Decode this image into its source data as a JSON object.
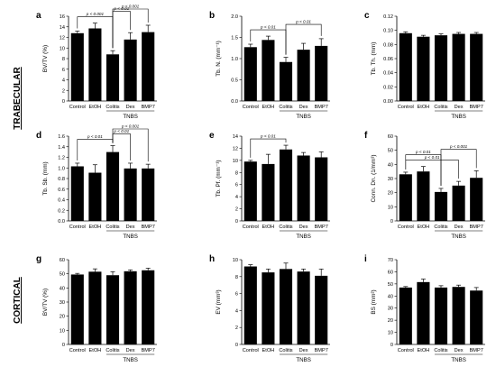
{
  "sections": [
    "TRABECULAR",
    "CORTICAL"
  ],
  "group_label": "TNBS",
  "chart_data": [
    {
      "type": "bar",
      "panel": "a",
      "ylabel": "BV/TV (%)",
      "ylim": [
        0,
        16
      ],
      "yticks": [
        0,
        2,
        4,
        6,
        8,
        10,
        12,
        14,
        16
      ],
      "categories": [
        "Control",
        "EtOH",
        "Colitis",
        "Dex",
        "BMP7"
      ],
      "values": [
        12.8,
        13.7,
        8.8,
        11.6,
        13.0
      ],
      "errors": [
        0.4,
        1.0,
        0.7,
        1.3,
        1.3
      ],
      "comparisons": [
        {
          "a": 0,
          "b": 2,
          "label": "p < 0.001"
        },
        {
          "a": 2,
          "b": 3,
          "label": "p < 0.01"
        },
        {
          "a": 2,
          "b": 4,
          "label": "p < 0.001"
        }
      ]
    },
    {
      "type": "bar",
      "panel": "b",
      "ylabel": "Tb. N. (mm⁻¹)",
      "ylim": [
        0,
        2.0
      ],
      "yticks": [
        0,
        0.5,
        1.0,
        1.5,
        2.0
      ],
      "categories": [
        "Control",
        "EtOH",
        "Colitis",
        "Dex",
        "BMP7"
      ],
      "values": [
        1.27,
        1.44,
        0.92,
        1.21,
        1.3
      ],
      "errors": [
        0.07,
        0.09,
        0.11,
        0.15,
        0.17
      ],
      "comparisons": [
        {
          "a": 0,
          "b": 2,
          "label": "p < 0.01"
        },
        {
          "a": 2,
          "b": 4,
          "label": "p < 0.01"
        }
      ]
    },
    {
      "type": "bar",
      "panel": "c",
      "ylabel": "Tb. Th. (mm)",
      "ylim": [
        0,
        0.12
      ],
      "yticks": [
        0,
        0.02,
        0.04,
        0.06,
        0.08,
        0.1,
        0.12
      ],
      "categories": [
        "Control",
        "EtOH",
        "Colitis",
        "Dex",
        "BMP7"
      ],
      "values": [
        0.096,
        0.091,
        0.093,
        0.095,
        0.095
      ],
      "errors": [
        0.002,
        0.002,
        0.002,
        0.002,
        0.002
      ],
      "comparisons": []
    },
    {
      "type": "bar",
      "panel": "d",
      "ylabel": "Tb. Sb. (mm)",
      "ylim": [
        0,
        1.6
      ],
      "yticks": [
        0,
        0.2,
        0.4,
        0.6,
        0.8,
        1.0,
        1.2,
        1.4,
        1.6
      ],
      "categories": [
        "Control",
        "EtOH",
        "Colitis",
        "Dex",
        "BMP7"
      ],
      "values": [
        1.03,
        0.91,
        1.3,
        0.99,
        0.99
      ],
      "errors": [
        0.06,
        0.15,
        0.12,
        0.1,
        0.08
      ],
      "comparisons": [
        {
          "a": 0,
          "b": 2,
          "label": "p < 0.01"
        },
        {
          "a": 2,
          "b": 3,
          "label": "p < 0.01"
        },
        {
          "a": 2,
          "b": 4,
          "label": "p < 0.001"
        }
      ]
    },
    {
      "type": "bar",
      "panel": "e",
      "ylabel": "Tb. Pf. (mm⁻¹)",
      "ylim": [
        0,
        14
      ],
      "yticks": [
        0,
        2,
        4,
        6,
        8,
        10,
        12,
        14
      ],
      "categories": [
        "Control",
        "EtOH",
        "Colitis",
        "Dex",
        "BMP7"
      ],
      "values": [
        9.8,
        9.4,
        11.8,
        10.8,
        10.5
      ],
      "errors": [
        0.2,
        1.6,
        0.7,
        0.5,
        0.9
      ],
      "comparisons": [
        {
          "a": 0,
          "b": 2,
          "label": "p < 0.01"
        }
      ]
    },
    {
      "type": "bar",
      "panel": "f",
      "ylabel": "Conn. Dn. (1/mm³)",
      "ylim": [
        0,
        60
      ],
      "yticks": [
        0,
        10,
        20,
        30,
        40,
        50,
        60
      ],
      "categories": [
        "Control",
        "EtOH",
        "Colitis",
        "Dex",
        "BMP7"
      ],
      "values": [
        33.0,
        35.0,
        20.5,
        25.0,
        30.5
      ],
      "errors": [
        1.5,
        3.5,
        2.5,
        3.0,
        5.0
      ],
      "comparisons": [
        {
          "a": 0,
          "b": 3,
          "label": "p < 0.01"
        },
        {
          "a": 0,
          "b": 2,
          "label": "p < 0.01"
        },
        {
          "a": 2,
          "b": 4,
          "label": "p < 0.001"
        }
      ]
    },
    {
      "type": "bar",
      "panel": "g",
      "ylabel": "BV/TV (%)",
      "ylim": [
        0,
        60
      ],
      "yticks": [
        0,
        10,
        20,
        30,
        40,
        50,
        60
      ],
      "categories": [
        "Control",
        "EtOH",
        "Colitis",
        "Dex",
        "BMP7"
      ],
      "values": [
        49.5,
        51.5,
        49.0,
        51.8,
        52.5
      ],
      "errors": [
        0.8,
        2.0,
        2.5,
        1.0,
        1.5
      ],
      "comparisons": []
    },
    {
      "type": "bar",
      "panel": "h",
      "ylabel": "EV (mm³)",
      "ylim": [
        0,
        10
      ],
      "yticks": [
        0,
        2,
        4,
        6,
        8,
        10
      ],
      "categories": [
        "Control",
        "EtOH",
        "Colitis",
        "Dex",
        "BMP7"
      ],
      "values": [
        9.2,
        8.5,
        8.9,
        8.6,
        8.1
      ],
      "errors": [
        0.2,
        0.4,
        0.7,
        0.3,
        0.8
      ],
      "comparisons": []
    },
    {
      "type": "bar",
      "panel": "i",
      "ylabel": "BS (mm²)",
      "ylim": [
        0,
        70
      ],
      "yticks": [
        0,
        10,
        20,
        30,
        40,
        50,
        60,
        70
      ],
      "categories": [
        "Control",
        "EtOH",
        "Colitis",
        "Dex",
        "BMP7"
      ],
      "values": [
        47.0,
        51.5,
        47.0,
        47.5,
        44.5
      ],
      "errors": [
        0.8,
        2.5,
        1.5,
        1.5,
        2.5
      ],
      "comparisons": []
    }
  ]
}
